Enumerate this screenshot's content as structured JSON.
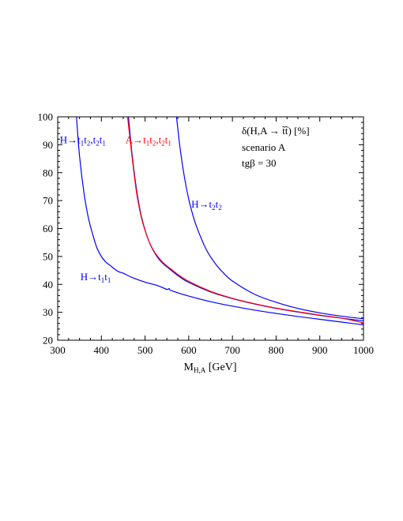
{
  "chart_data": {
    "type": "line",
    "title": "δ(H,A → t̃t̃) [%]",
    "annotations": [
      "scenario A",
      "tgβ = 30"
    ],
    "xlabel": "M",
    "xlabel_sub": "H,A",
    "xlabel_unit": " [GeV]",
    "xlim": [
      300,
      1000
    ],
    "ylim": [
      20,
      100
    ],
    "xticks": [
      300,
      400,
      500,
      600,
      700,
      800,
      900,
      1000
    ],
    "yticks": [
      20,
      30,
      40,
      50,
      60,
      70,
      80,
      90,
      100
    ],
    "grid": false,
    "series": [
      {
        "name": "H→t̃₁t̃₁",
        "color": "#0000ff",
        "x": [
          343,
          350,
          360,
          370,
          380,
          390,
          400,
          410,
          420,
          430,
          440,
          450,
          470,
          500,
          530,
          550,
          555,
          560,
          600,
          650,
          700,
          750,
          800,
          850,
          900,
          950,
          1000
        ],
        "y": [
          100,
          86,
          73,
          64,
          58,
          53,
          50,
          48,
          46.8,
          45.5,
          44.5,
          44,
          42.5,
          40.8,
          39.5,
          38.2,
          38.5,
          37.8,
          35.8,
          33.8,
          32.2,
          30.8,
          29.6,
          28.5,
          27.5,
          26.5,
          25.5
        ]
      },
      {
        "name": "H→t̃₁t̃₂,t̃₂t̃₁",
        "color": "#0000ff",
        "x": [
          462,
          470,
          480,
          490,
          500,
          510,
          520,
          530,
          540,
          550,
          560,
          580,
          600,
          650,
          700,
          750,
          800,
          850,
          900,
          950,
          1000
        ],
        "y": [
          100,
          87,
          74.5,
          65.5,
          59.5,
          55,
          51.8,
          49.4,
          47.6,
          46.3,
          45,
          42.6,
          40.7,
          37.3,
          34.9,
          33,
          31.4,
          30.1,
          28.9,
          27.9,
          26.9
        ]
      },
      {
        "name": "A→t̃₁t̃₂,t̃₂t̃₁",
        "color": "#ff0000",
        "x": [
          460,
          470,
          480,
          490,
          500,
          510,
          520,
          530,
          540,
          550,
          560,
          580,
          600,
          650,
          700,
          750,
          800,
          850,
          900,
          950,
          1000
        ],
        "y": [
          100,
          86,
          73.5,
          65,
          59.3,
          55,
          52,
          49.8,
          48,
          46.6,
          45.4,
          43,
          41.1,
          37.5,
          35,
          33.1,
          31.5,
          30.2,
          29,
          27.9,
          26.2
        ]
      },
      {
        "name": "H→t̃₂t̃₂",
        "color": "#0000ff",
        "x": [
          572,
          580,
          590,
          600,
          610,
          620,
          640,
          660,
          680,
          700,
          750,
          800,
          850,
          900,
          950,
          1000
        ],
        "y": [
          100,
          89,
          78.5,
          70.5,
          64.5,
          59.8,
          52.5,
          47.6,
          44,
          41.2,
          36.5,
          33.6,
          31.4,
          29.8,
          28.6,
          27.7
        ]
      }
    ],
    "labels": [
      {
        "id": "h11",
        "main": "H→t",
        "parts": [
          [
            "1",
            "t"
          ],
          [
            "1",
            ""
          ]
        ],
        "color": "#0000ff",
        "x": 352,
        "y": 41.5
      },
      {
        "id": "h12",
        "main": "H→t",
        "parts": [
          [
            "1",
            "t"
          ],
          [
            "2",
            ",t"
          ],
          [
            "2",
            "t"
          ],
          [
            "1",
            ""
          ]
        ],
        "color": "#0000ff",
        "x": 305,
        "y": 90.5
      },
      {
        "id": "a12",
        "main": "A→t",
        "parts": [
          [
            "1",
            "t"
          ],
          [
            "2",
            ",t"
          ],
          [
            "2",
            "t"
          ],
          [
            "1",
            ""
          ]
        ],
        "color": "#ff0000",
        "x": 455,
        "y": 90.5
      },
      {
        "id": "h22",
        "main": "H→t",
        "parts": [
          [
            "2",
            "t"
          ],
          [
            "2",
            ""
          ]
        ],
        "color": "#0000ff",
        "x": 606,
        "y": 67.5
      }
    ]
  }
}
